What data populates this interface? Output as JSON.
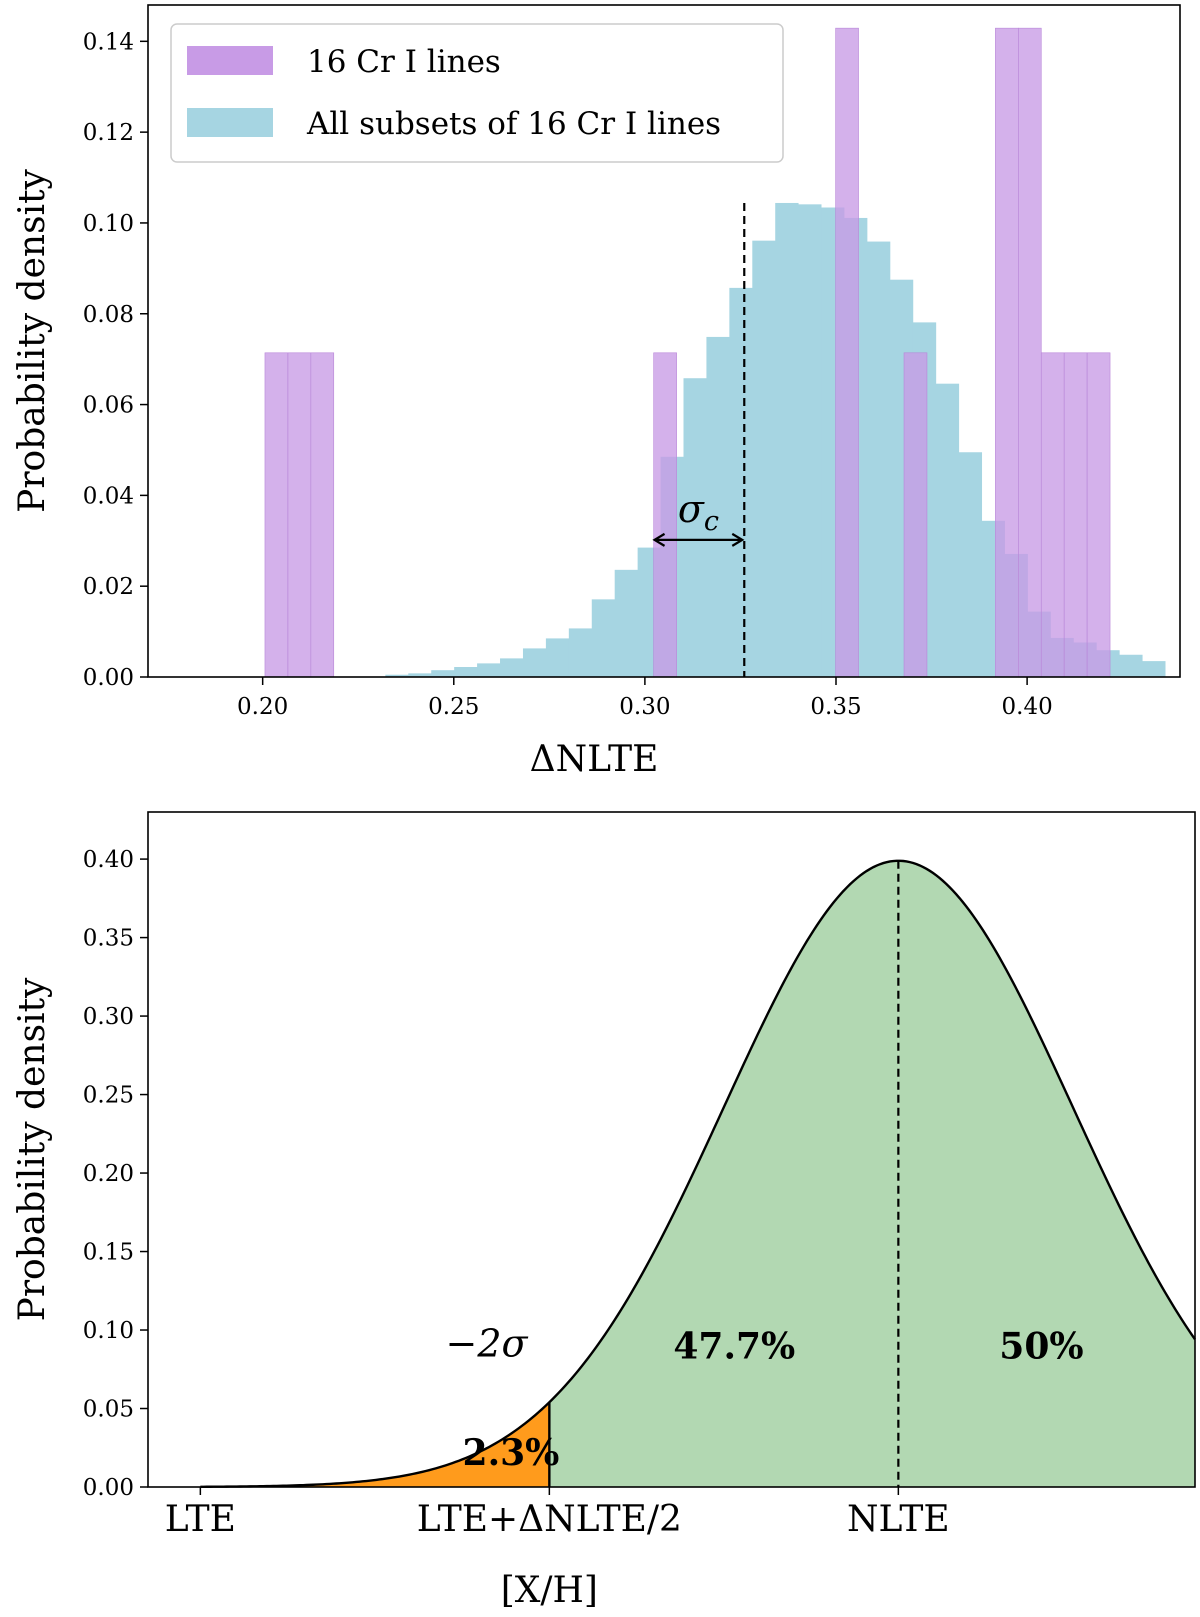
{
  "chart_data": [
    {
      "type": "bar",
      "title": "",
      "xlabel": "ΔNLTE",
      "ylabel": "Probability density",
      "xlim": [
        0.17,
        0.44
      ],
      "ylim": [
        0,
        0.148
      ],
      "xticks": [
        0.2,
        0.25,
        0.3,
        0.35,
        0.4
      ],
      "xtick_labels": [
        "0.20",
        "0.25",
        "0.30",
        "0.35",
        "0.40"
      ],
      "yticks": [
        0,
        0.02,
        0.04,
        0.06,
        0.08,
        0.1,
        0.12,
        0.14
      ],
      "ytick_labels": [
        "0.00",
        "0.02",
        "0.04",
        "0.06",
        "0.08",
        "0.10",
        "0.12",
        "0.14"
      ],
      "legend_position": "top-left",
      "series": [
        {
          "name": "16 Cr I lines",
          "color": "#c89be6",
          "bins": [
            [
              0.2006,
              0.2066,
              0.0714
            ],
            [
              0.2066,
              0.2126,
              0.0714
            ],
            [
              0.2126,
              0.2186,
              0.0714
            ],
            [
              0.3023,
              0.3083,
              0.0714
            ],
            [
              0.3499,
              0.3559,
              0.1429
            ],
            [
              0.3678,
              0.3738,
              0.0714
            ],
            [
              0.3917,
              0.3977,
              0.1429
            ],
            [
              0.3977,
              0.4037,
              0.1429
            ],
            [
              0.4037,
              0.4097,
              0.0714
            ],
            [
              0.4097,
              0.4157,
              0.0714
            ],
            [
              0.4157,
              0.4217,
              0.0714
            ]
          ]
        },
        {
          "name": "All subsets of 16 Cr I lines",
          "color": "#a6d5e2",
          "bins": [
            [
              0.2321,
              0.2381,
              0.0005
            ],
            [
              0.2381,
              0.2441,
              0.0008
            ],
            [
              0.2441,
              0.2501,
              0.0015
            ],
            [
              0.2501,
              0.2561,
              0.0022
            ],
            [
              0.2561,
              0.2621,
              0.003
            ],
            [
              0.2621,
              0.2681,
              0.0041
            ],
            [
              0.2681,
              0.2741,
              0.0063
            ],
            [
              0.2741,
              0.2801,
              0.0085
            ],
            [
              0.2801,
              0.2861,
              0.0107
            ],
            [
              0.2861,
              0.2921,
              0.0171
            ],
            [
              0.2921,
              0.2981,
              0.0236
            ],
            [
              0.2981,
              0.3041,
              0.0285
            ],
            [
              0.3041,
              0.3101,
              0.0485
            ],
            [
              0.3101,
              0.3161,
              0.0658
            ],
            [
              0.3161,
              0.3221,
              0.0749
            ],
            [
              0.3221,
              0.3281,
              0.0857
            ],
            [
              0.3281,
              0.3341,
              0.0961
            ],
            [
              0.3341,
              0.3401,
              0.1044
            ],
            [
              0.3401,
              0.3461,
              0.1041
            ],
            [
              0.3461,
              0.3521,
              0.1034
            ],
            [
              0.3521,
              0.3581,
              0.1011
            ],
            [
              0.3581,
              0.3641,
              0.0959
            ],
            [
              0.3641,
              0.3701,
              0.0875
            ],
            [
              0.3701,
              0.3761,
              0.0781
            ],
            [
              0.3761,
              0.3821,
              0.0646
            ],
            [
              0.3821,
              0.3881,
              0.0495
            ],
            [
              0.3881,
              0.3941,
              0.0344
            ],
            [
              0.3941,
              0.4001,
              0.0271
            ],
            [
              0.4001,
              0.4061,
              0.0144
            ],
            [
              0.4061,
              0.4121,
              0.0086
            ],
            [
              0.4121,
              0.4181,
              0.0076
            ],
            [
              0.4181,
              0.4241,
              0.0059
            ],
            [
              0.4241,
              0.4301,
              0.0049
            ],
            [
              0.4301,
              0.4361,
              0.0035
            ]
          ]
        }
      ],
      "median_line_x": 0.326,
      "sigma_arrow": {
        "from": 0.302,
        "to": 0.326,
        "label": "σ_c"
      }
    },
    {
      "type": "area",
      "title": "",
      "xlabel": "[X/H]",
      "ylabel": "Probability density",
      "curve": "normal",
      "sigma": 1.0,
      "xlim": [
        -4.3,
        1.7
      ],
      "ylim": [
        0,
        0.43
      ],
      "yticks": [
        0,
        0.05,
        0.1,
        0.15,
        0.2,
        0.25,
        0.3,
        0.35,
        0.4
      ],
      "ytick_labels": [
        "0.00",
        "0.05",
        "0.10",
        "0.15",
        "0.20",
        "0.25",
        "0.30",
        "0.35",
        "0.40"
      ],
      "xticks": [
        -4,
        -2,
        0
      ],
      "xtick_labels": [
        "LTE",
        "LTE+ΔNLTE/2",
        "NLTE"
      ],
      "regions": [
        {
          "from": -4,
          "to": -2,
          "label": "2.3%",
          "color": "#ff9b1c"
        },
        {
          "from": -2,
          "to": 0,
          "label": "47.7%",
          "color": "#b2d8b2"
        },
        {
          "from": 0,
          "to": 1.7,
          "label": "50%",
          "color": "#b2d8b2"
        }
      ],
      "sigma_label": "−2σ",
      "peak_line_x": 0
    }
  ]
}
